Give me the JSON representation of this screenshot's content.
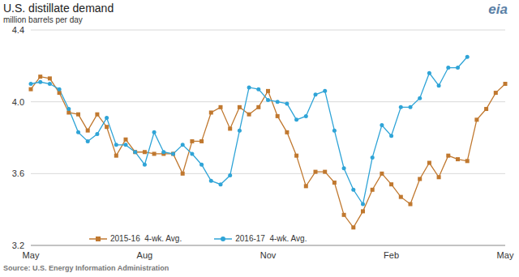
{
  "chart_data": {
    "type": "line",
    "title": "U.S. distillate demand",
    "subtitle": "million barrels per day",
    "source": "Source: U.S. Energy Information Administration",
    "logo": "eia",
    "categories": [
      "May",
      null,
      null,
      null,
      null,
      null,
      null,
      null,
      null,
      null,
      null,
      null,
      "Aug",
      null,
      null,
      null,
      null,
      null,
      null,
      null,
      null,
      null,
      null,
      null,
      null,
      "Nov",
      null,
      null,
      null,
      null,
      null,
      null,
      null,
      null,
      null,
      null,
      null,
      null,
      "Feb",
      null,
      null,
      null,
      null,
      null,
      null,
      null,
      null,
      null,
      null,
      null,
      "May"
    ],
    "series": [
      {
        "name": "2015-16  4-wk. Avg.",
        "color": "#c0782f",
        "marker": "square",
        "values": [
          4.07,
          4.14,
          4.13,
          4.05,
          3.94,
          3.93,
          3.84,
          3.93,
          3.86,
          3.7,
          3.79,
          3.72,
          3.72,
          3.71,
          3.71,
          3.71,
          3.6,
          3.78,
          3.78,
          3.94,
          3.97,
          3.85,
          3.97,
          3.93,
          3.97,
          4.06,
          3.92,
          3.83,
          3.7,
          3.53,
          3.61,
          3.61,
          3.55,
          3.37,
          3.3,
          3.39,
          3.51,
          3.6,
          3.54,
          3.47,
          3.43,
          3.57,
          3.66,
          3.58,
          3.7,
          3.68,
          3.67,
          3.9,
          3.96,
          4.05,
          4.1
        ]
      },
      {
        "name": "2016-17  4-wk. Avg.",
        "color": "#2fa4d7",
        "marker": "circle",
        "values": [
          4.1,
          4.11,
          4.1,
          4.07,
          3.96,
          3.83,
          3.78,
          3.82,
          3.91,
          3.76,
          3.76,
          3.72,
          3.65,
          3.83,
          3.72,
          3.71,
          3.76,
          3.71,
          3.65,
          3.56,
          3.54,
          3.59,
          3.84,
          4.08,
          4.07,
          4.01,
          4.0,
          3.99,
          3.9,
          3.92,
          4.04,
          4.06,
          3.84,
          3.63,
          3.51,
          3.43,
          3.69,
          3.87,
          3.81,
          3.97,
          3.97,
          4.02,
          4.16,
          4.09,
          4.19,
          4.19,
          4.25,
          null,
          null,
          null,
          null
        ]
      }
    ],
    "ylim": [
      3.2,
      4.4
    ],
    "yticks": [
      3.2,
      3.6,
      {
        "value": 4,
        "label": "4.0"
      },
      4.4
    ],
    "grid": true,
    "legend": "bottom"
  }
}
